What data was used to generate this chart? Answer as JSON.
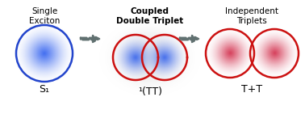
{
  "bg_color": "#ffffff",
  "arrow_color": "#607070",
  "title1": "Single\nExciton",
  "label1": "S₁",
  "title2": "Coupled\nDouble Triplet",
  "label2": "¹(TT)",
  "title3": "Independent\nTriplets",
  "label3": "T+T",
  "blue_circle_color": "#2244cc",
  "red_circle_color": "#cc1111",
  "title2_bold": true,
  "figsize": [
    3.78,
    1.41
  ],
  "dpi": 100
}
